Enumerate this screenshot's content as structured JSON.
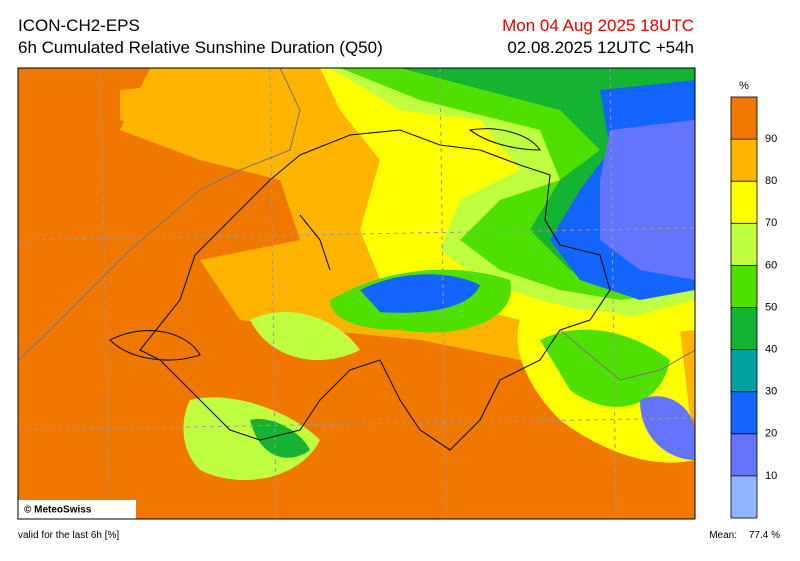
{
  "header": {
    "model": "ICON-CH2-EPS",
    "title": "6h Cumulated Relative Sunshine Duration (Q50)",
    "valid_time": "Mon 04 Aug 2025 18UTC",
    "run": "02.08.2025 12UTC +54h"
  },
  "colorbar": {
    "unit": "%",
    "ticks": [
      10,
      20,
      30,
      40,
      50,
      60,
      70,
      80,
      90
    ],
    "colors": [
      "#90b4ff",
      "#6474ff",
      "#1464ff",
      "#00a0a0",
      "#14b432",
      "#50e000",
      "#c0ff40",
      "#ffff00",
      "#ffb400",
      "#f07800"
    ]
  },
  "map": {
    "copyright": "© MeteoSwiss"
  },
  "footer": {
    "note": "valid for the last 6h [%]",
    "mean_label": "Mean:",
    "mean_value": "77.4 %"
  }
}
